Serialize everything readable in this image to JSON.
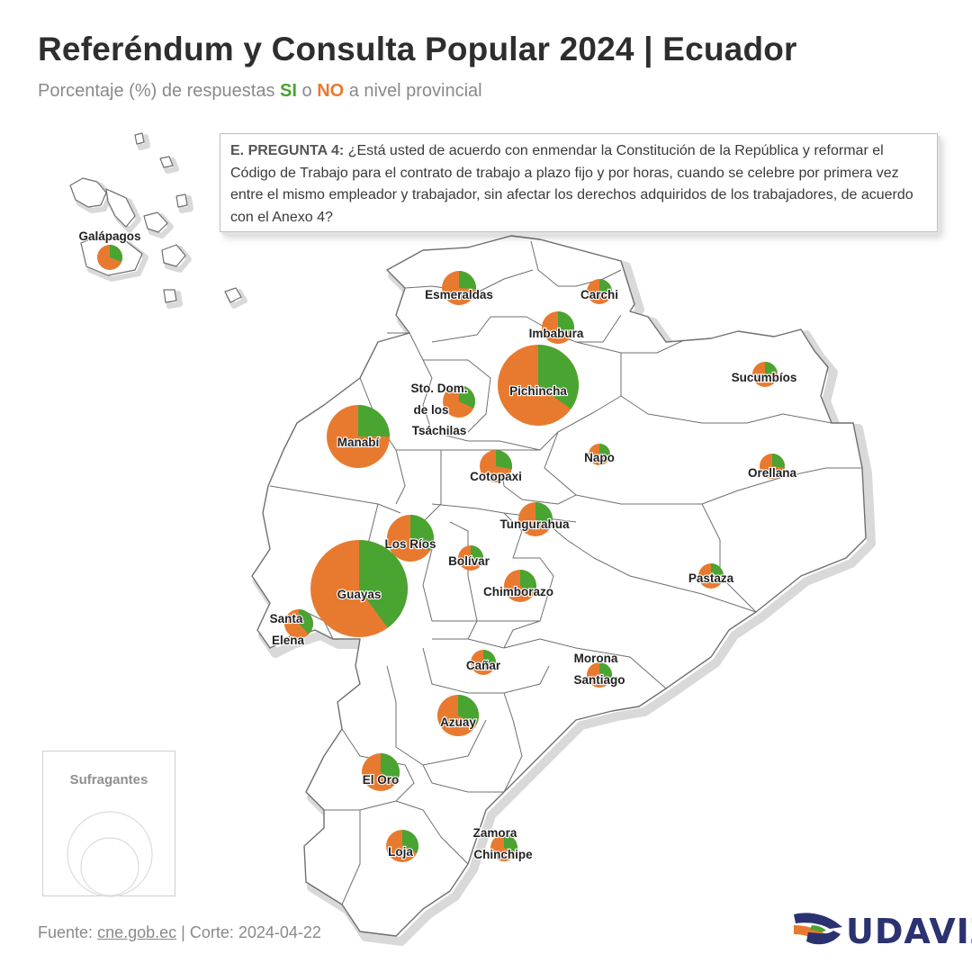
{
  "header": {
    "title": "Referéndum y Consulta Popular 2024 | Ecuador",
    "subtitle_prefix": "Porcentaje (%) de respuestas",
    "subtitle_yes": "SI",
    "subtitle_or": "o",
    "subtitle_no": "NO",
    "subtitle_suffix": "a nivel provincial"
  },
  "question": {
    "label": "E. PREGUNTA 4:",
    "text": "¿Está usted de acuerdo con enmendar la Constitución de la República y reformar el Código de Trabajo para el contrato de trabajo a plazo fijo y por horas, cuando se celebre por primera vez entre el mismo empleador y trabajador, sin afectar los derechos adquiridos de los trabajadores, de acuerdo con el Anexo 4?"
  },
  "legend": {
    "title": "Sufragantes"
  },
  "footer": {
    "source_prefix": "Fuente:",
    "source_link": "cne.gob.ec",
    "cut": "| Corte: 2024-04-22"
  },
  "logo": {
    "text": "UDAVIZ",
    "icon": "udaviz-logo-icon"
  },
  "colors": {
    "si": "#4aa432",
    "no": "#e87a2f",
    "border": "#6f6f6f",
    "shadow": "#d9d9d9"
  },
  "chart_data": {
    "type": "pie",
    "series": [
      {
        "name": "SI"
      },
      {
        "name": "NO"
      }
    ],
    "provinces": [
      {
        "name": "Galápagos",
        "si_pct": 31
      },
      {
        "name": "Esmeraldas",
        "si_pct": 26
      },
      {
        "name": "Carchi",
        "si_pct": 27
      },
      {
        "name": "Imbabura",
        "si_pct": 33
      },
      {
        "name": "Sucumbíos",
        "si_pct": 22
      },
      {
        "name": "Pichincha",
        "si_pct": 35
      },
      {
        "name": "Sto. Dom. de los Tsáchilas",
        "si_pct": 32
      },
      {
        "name": "Manabí",
        "si_pct": 25
      },
      {
        "name": "Napo",
        "si_pct": 27
      },
      {
        "name": "Cotopaxi",
        "si_pct": 28
      },
      {
        "name": "Orellana",
        "si_pct": 27
      },
      {
        "name": "Tungurahua",
        "si_pct": 35
      },
      {
        "name": "Los Ríos",
        "si_pct": 34
      },
      {
        "name": "Bolívar",
        "si_pct": 28
      },
      {
        "name": "Guayas",
        "si_pct": 40
      },
      {
        "name": "Chimborazo",
        "si_pct": 33
      },
      {
        "name": "Pastaza",
        "si_pct": 34
      },
      {
        "name": "Santa Elena",
        "si_pct": 38
      },
      {
        "name": "Cañar",
        "si_pct": 30
      },
      {
        "name": "Morona Santiago",
        "si_pct": 30
      },
      {
        "name": "Azuay",
        "si_pct": 32
      },
      {
        "name": "El Oro",
        "si_pct": 34
      },
      {
        "name": "Zamora Chinchipe",
        "si_pct": 30
      },
      {
        "name": "Loja",
        "si_pct": 32
      }
    ]
  }
}
